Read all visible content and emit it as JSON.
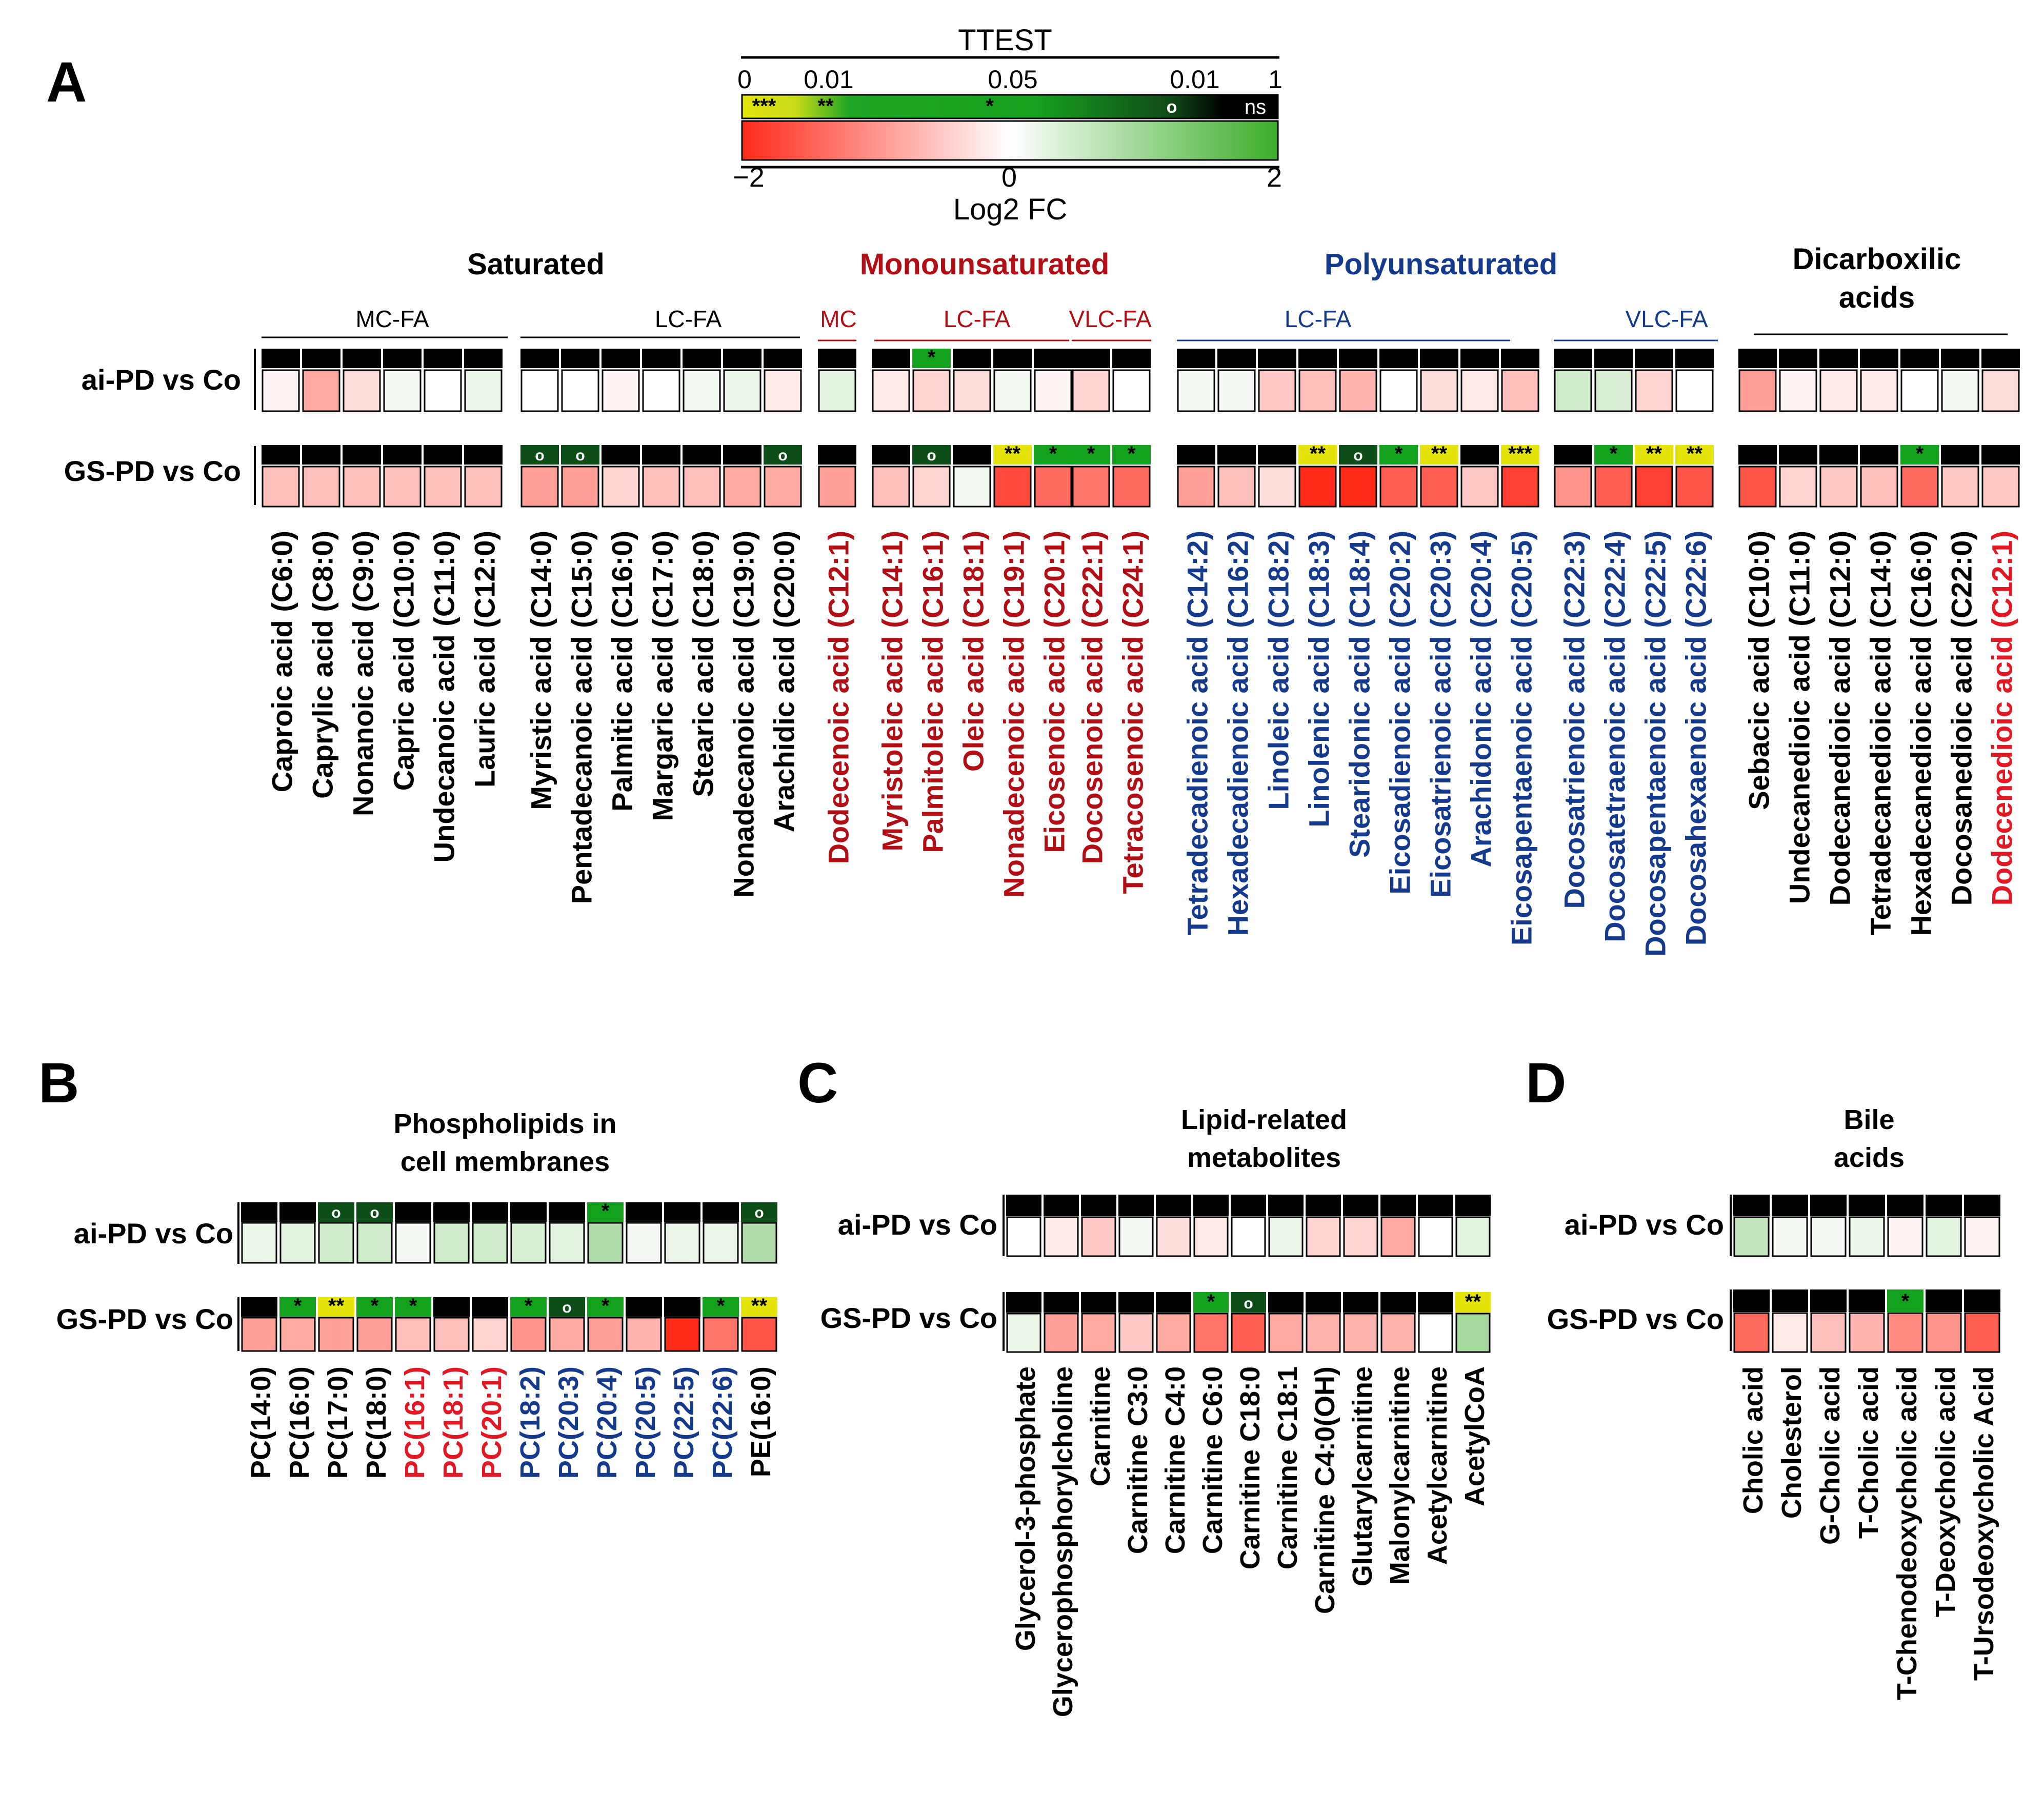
{
  "colors": {
    "ns": "#000000",
    "sig_yellow": "#e4e30a",
    "sig_green": "#14a21e",
    "sig_dark": "#0d4d18",
    "fc_neg": "#ff2a1a",
    "fc_zero": "#ffffff",
    "fc_pos": "#3cad2a",
    "saturated": "#000000",
    "mono": "#b10f16",
    "poly": "#153a8c",
    "dicarb_red": "#e11925"
  },
  "legend": {
    "title": "TTEST",
    "pval_ticks": [
      "0",
      "0.01",
      "0.05",
      "0.01",
      "1"
    ],
    "sig_labels": [
      "***",
      "**",
      "*",
      "o",
      "ns"
    ],
    "fc_ticks": [
      "−2",
      "0",
      "2"
    ],
    "fc_label": "Log2 FC",
    "fc_range": [
      -2,
      2
    ]
  },
  "panel_a": {
    "letter": "A",
    "row_labels": [
      "ai-PD vs Co",
      "GS-PD vs Co"
    ],
    "groups": [
      {
        "id": "sat",
        "title": "Saturated",
        "color": "saturated",
        "subgroups": [
          {
            "label": "MC-FA",
            "from": 0,
            "to": 5
          },
          {
            "label": "LC-FA",
            "from": 0,
            "to": 6
          }
        ]
      },
      {
        "id": "mono",
        "title": "Monounsaturated",
        "color": "mono"
      },
      {
        "id": "poly",
        "title": "Polyunsaturated",
        "color": "poly"
      },
      {
        "id": "dicarb",
        "title": "Dicarboxilic acids",
        "color": "saturated",
        "title_lines": [
          "Dicarboxilic",
          "acids"
        ]
      }
    ],
    "blocks": [
      {
        "group": "sat",
        "sublabel": "MC-FA",
        "sub_color": "saturated",
        "names": [
          "Caproic acid (C6:0)",
          "Caprylic acid (C8:0)",
          "Nonanoic acid (C9:0)",
          "Capric acid (C10:0)",
          "Undecanoic acid  (C11:0)",
          "Lauric acid (C12:0)"
        ],
        "name_colors": [
          "saturated",
          "saturated",
          "saturated",
          "saturated",
          "saturated",
          "saturated"
        ],
        "ai_fc": [
          -0.1,
          -0.8,
          -0.3,
          0.1,
          0.0,
          0.2
        ],
        "ai_sig": [
          "ns",
          "ns",
          "ns",
          "ns",
          "ns",
          "ns"
        ],
        "gs_fc": [
          -0.6,
          -0.6,
          -0.6,
          -0.6,
          -0.6,
          -0.6
        ],
        "gs_sig": [
          "ns",
          "ns",
          "ns",
          "ns",
          "ns",
          "ns"
        ]
      },
      {
        "group": "sat",
        "sublabel": "LC-FA",
        "sub_color": "saturated",
        "names": [
          "Myristic acid (C14:0)",
          "Pentadecanoic acid (C15:0)",
          "Palmitic acid (C16:0)",
          "Margaric acid (C17:0)",
          "Stearic acid (C18:0)",
          "Nonadecanoic acid (C19:0)",
          "Arachidic acid (C20:0)"
        ],
        "name_colors": [
          "saturated",
          "saturated",
          "saturated",
          "saturated",
          "saturated",
          "saturated",
          "saturated"
        ],
        "ai_fc": [
          0.0,
          0.0,
          -0.1,
          0.0,
          0.1,
          0.2,
          -0.2
        ],
        "ai_sig": [
          "ns",
          "ns",
          "ns",
          "ns",
          "ns",
          "ns",
          "ns"
        ],
        "gs_fc": [
          -0.9,
          -0.9,
          -0.4,
          -0.6,
          -0.6,
          -0.8,
          -0.8
        ],
        "gs_sig": [
          "o",
          "o",
          "ns",
          "ns",
          "ns",
          "ns",
          "o"
        ]
      },
      {
        "group": "mono",
        "sublabel": "MC",
        "sub_color": "mono",
        "names": [
          "Dodecenoic acid (C12:1)"
        ],
        "name_colors": [
          "mono"
        ],
        "ai_fc": [
          0.3
        ],
        "ai_sig": [
          "ns"
        ],
        "gs_fc": [
          -0.9
        ],
        "gs_sig": [
          "ns"
        ]
      },
      {
        "group": "mono",
        "sublabel": "LC-FA",
        "sub_color": "mono",
        "names": [
          "Myristoleic acid (C14:1)",
          "Palmitoleic acid (C16:1)",
          "Oleic acid (C18:1)",
          "Nonadecenoic acid (C19:1)",
          "Eicosenoic acid (C20:1)"
        ],
        "name_colors": [
          "mono",
          "mono",
          "mono",
          "mono",
          "mono"
        ],
        "ai_fc": [
          -0.2,
          -0.4,
          -0.3,
          0.1,
          -0.1
        ],
        "ai_sig": [
          "ns",
          "*",
          "ns",
          "ns",
          "ns"
        ],
        "gs_fc": [
          -0.6,
          -0.4,
          0.1,
          -1.7,
          -1.4
        ],
        "gs_sig": [
          "ns",
          "o",
          "ns",
          "**",
          "*"
        ]
      },
      {
        "group": "mono",
        "sublabel": "VLC-FA",
        "sub_color": "mono",
        "names": [
          "Docosenoic acid (C22:1)",
          "Tetracosenoic acid (C24:1)"
        ],
        "name_colors": [
          "mono",
          "mono"
        ],
        "ai_fc": [
          -0.4,
          0.0
        ],
        "ai_sig": [
          "ns",
          "ns"
        ],
        "gs_fc": [
          -1.3,
          -1.4
        ],
        "gs_sig": [
          "*",
          "*"
        ]
      },
      {
        "group": "poly",
        "sublabel": "LC-FA",
        "sub_color": "poly",
        "names": [
          "Tetradecadienoic acid (C14:2)",
          "Hexadecadienoic acid (C16:2)",
          "Linoleic acid (C18:2)",
          "Linolenic acid (C18:3)",
          "Stearidonic acid (C18:4)",
          "Eicosadienoic acid (C20:2)",
          "Eicosatrienoic acid (C20:3)",
          "Arachidonic acid (C20:4)",
          "Eicosapentaenoic acid (C20:5)"
        ],
        "name_colors": [
          "poly",
          "poly",
          "poly",
          "poly",
          "poly",
          "poly",
          "poly",
          "poly",
          "poly"
        ],
        "ai_fc": [
          0.1,
          0.1,
          -0.5,
          -0.6,
          -0.7,
          0.0,
          -0.3,
          -0.2,
          -0.6
        ],
        "ai_sig": [
          "ns",
          "ns",
          "ns",
          "ns",
          "ns",
          "ns",
          "ns",
          "ns",
          "ns"
        ],
        "gs_fc": [
          -0.9,
          -0.6,
          -0.3,
          -2.0,
          -2.0,
          -1.5,
          -1.5,
          -0.5,
          -1.8
        ],
        "gs_sig": [
          "ns",
          "ns",
          "ns",
          "**",
          "o",
          "*",
          "**",
          "ns",
          "***"
        ]
      },
      {
        "group": "poly",
        "sublabel": "VLC-FA",
        "sub_color": "poly",
        "names": [
          "Docosatrienoic acid  (C22:3)",
          "Docosatetraenoic acid (C22:4)",
          "Docosapentaenoic acid (C22:5)",
          "Docosahexaenoic acid (C22:6)"
        ],
        "name_colors": [
          "poly",
          "poly",
          "poly",
          "poly"
        ],
        "ai_fc": [
          0.5,
          0.4,
          -0.4,
          0.0
        ],
        "ai_sig": [
          "ns",
          "ns",
          "ns",
          "ns"
        ],
        "gs_fc": [
          -1.0,
          -1.5,
          -1.8,
          -1.6
        ],
        "gs_sig": [
          "ns",
          "*",
          "**",
          "**"
        ]
      },
      {
        "group": "dicarb",
        "sublabel": "",
        "sub_color": "saturated",
        "names": [
          "Sebacic acid (C10:0)",
          "Undecanedioic acid (C11:0)",
          "Dodecanedioic acid  (C12:0)",
          "Tetradecanedioic acid  (C14:0)",
          "Hexadecanedioic acid  (C16:0)",
          "Docosanedioic acid (C22:0)",
          "Dodecenedioic acid (C12:1)"
        ],
        "name_colors": [
          "saturated",
          "saturated",
          "saturated",
          "saturated",
          "saturated",
          "saturated",
          "dicarb_red"
        ],
        "ai_fc": [
          -0.9,
          -0.1,
          -0.2,
          -0.2,
          0.0,
          0.1,
          -0.3
        ],
        "ai_sig": [
          "ns",
          "ns",
          "ns",
          "ns",
          "ns",
          "ns",
          "ns"
        ],
        "gs_fc": [
          -1.6,
          -0.4,
          -0.5,
          -0.6,
          -1.4,
          -0.5,
          -0.5
        ],
        "gs_sig": [
          "ns",
          "ns",
          "ns",
          "ns",
          "*",
          "ns",
          "ns"
        ]
      }
    ]
  },
  "panel_b": {
    "letter": "B",
    "title_lines": [
      "Phospholipids in",
      "cell membranes"
    ],
    "row_labels": [
      "ai-PD vs Co",
      "GS-PD vs Co"
    ],
    "names": [
      "PC(14:0)",
      "PC(16:0)",
      "PC(17:0)",
      "PC(18:0)",
      "PC(16:1)",
      "PC(18:1)",
      "PC(20:1)",
      "PC(18:2)",
      "PC(20:3)",
      "PC(20:4)",
      "PC(20:5)",
      "PC(22:5)",
      "PC(22:6)",
      "PE(16:0)"
    ],
    "name_colors": [
      "saturated",
      "saturated",
      "saturated",
      "saturated",
      "dicarb_red",
      "dicarb_red",
      "dicarb_red",
      "poly",
      "poly",
      "poly",
      "poly",
      "poly",
      "poly",
      "saturated"
    ],
    "ai_fc": [
      0.2,
      0.3,
      0.5,
      0.5,
      0.1,
      0.5,
      0.5,
      0.4,
      0.3,
      0.8,
      0.1,
      0.2,
      0.2,
      0.8
    ],
    "ai_sig": [
      "ns",
      "ns",
      "o",
      "o",
      "ns",
      "ns",
      "ns",
      "ns",
      "ns",
      "*",
      "ns",
      "ns",
      "ns",
      "o"
    ],
    "gs_fc": [
      -0.9,
      -0.8,
      -0.9,
      -0.9,
      -0.6,
      -0.6,
      -0.4,
      -1.0,
      -0.8,
      -0.9,
      -0.7,
      -2.0,
      -1.3,
      -1.6
    ],
    "gs_sig": [
      "ns",
      "*",
      "**",
      "*",
      "*",
      "ns",
      "ns",
      "*",
      "o",
      "*",
      "ns",
      "ns",
      "*",
      "**"
    ]
  },
  "panel_c": {
    "letter": "C",
    "title_lines": [
      "Lipid-related",
      "metabolites"
    ],
    "row_labels": [
      "ai-PD vs Co",
      "GS-PD vs Co"
    ],
    "names": [
      "Glycerol-3-phosphate",
      "Glycerophosphorylcholine",
      "Carnitine",
      "Carnitine C3:0",
      "Carnitine C4:0",
      "Carnitine C6:0",
      "Carnitine C18:0",
      "Carnitine C18:1",
      "Carnitine C4:0(OH)",
      "Glutarylcarnitine",
      "Malonylcarnitine",
      "Acetylcarnitine",
      "AcetylCoA"
    ],
    "name_colors": [
      "saturated",
      "saturated",
      "saturated",
      "saturated",
      "saturated",
      "saturated",
      "saturated",
      "saturated",
      "saturated",
      "saturated",
      "saturated",
      "saturated",
      "saturated"
    ],
    "ai_fc": [
      0.0,
      -0.2,
      -0.5,
      0.1,
      -0.3,
      -0.2,
      0.0,
      0.2,
      -0.4,
      -0.4,
      -0.8,
      0.0,
      0.3
    ],
    "ai_sig": [
      "ns",
      "ns",
      "ns",
      "ns",
      "ns",
      "ns",
      "ns",
      "ns",
      "ns",
      "ns",
      "ns",
      "ns",
      "ns"
    ],
    "gs_fc": [
      0.2,
      -0.9,
      -0.8,
      -0.5,
      -0.8,
      -1.3,
      -1.5,
      -0.8,
      -0.7,
      -0.7,
      -0.7,
      0.0,
      0.9
    ],
    "gs_sig": [
      "ns",
      "ns",
      "ns",
      "ns",
      "ns",
      "*",
      "o",
      "ns",
      "ns",
      "ns",
      "ns",
      "ns",
      "**"
    ]
  },
  "panel_d": {
    "letter": "D",
    "title_lines": [
      "Bile",
      "acids"
    ],
    "row_labels": [
      "ai-PD vs Co",
      "GS-PD vs Co"
    ],
    "names": [
      "Cholic acid",
      "Cholesterol",
      "G-Cholic acid",
      "T-Cholic acid",
      "T-Chenodeoxycholic acid",
      "T-Deoxycholic acid",
      "T-Ursodeoxycholic Acid"
    ],
    "name_colors": [
      "saturated",
      "saturated",
      "saturated",
      "saturated",
      "saturated",
      "saturated",
      "saturated"
    ],
    "ai_fc": [
      0.6,
      0.1,
      0.1,
      0.2,
      -0.1,
      0.3,
      -0.1
    ],
    "ai_sig": [
      "ns",
      "ns",
      "ns",
      "ns",
      "ns",
      "ns",
      "ns"
    ],
    "gs_fc": [
      -1.4,
      -0.2,
      -0.6,
      -0.7,
      -1.1,
      -1.0,
      -1.5
    ],
    "gs_sig": [
      "ns",
      "ns",
      "ns",
      "ns",
      "*",
      "ns",
      "ns"
    ]
  }
}
